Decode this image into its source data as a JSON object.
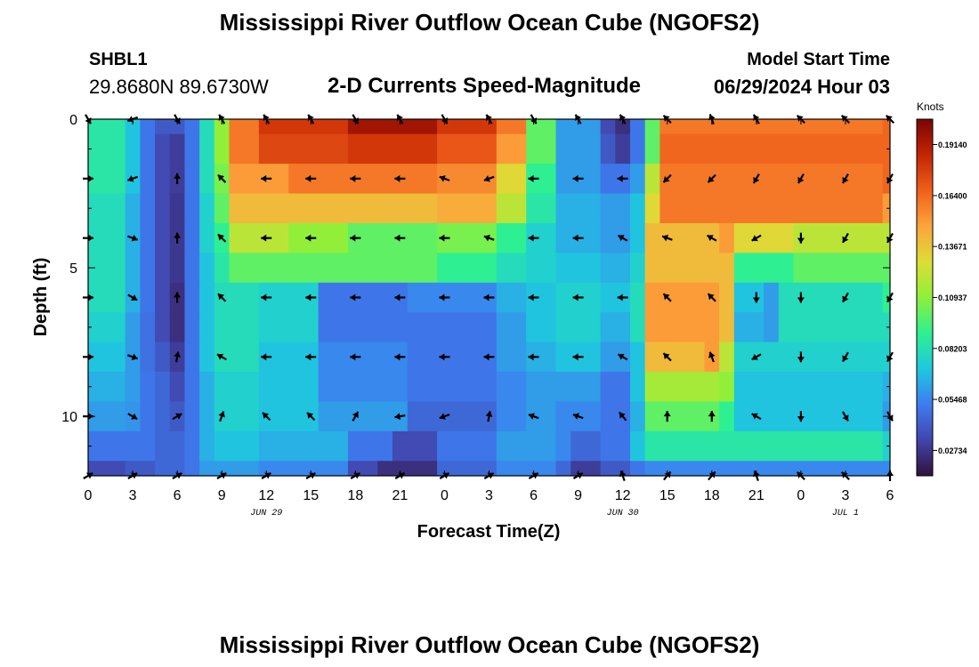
{
  "page": {
    "title": "Mississippi River Outflow Ocean Cube (NGOFS2)",
    "station_id": "SHBL1",
    "station_coords": "29.8680N  89.6730W",
    "plot_title": "2-D Currents Speed-Magnitude",
    "model_start_label": "Model Start Time",
    "model_start_value": "06/29/2024 Hour 03",
    "bottom_title": "Mississippi River Outflow Ocean Cube (NGOFS2)"
  },
  "chart_data": {
    "type": "heatmap",
    "title": "2-D Currents Speed-Magnitude",
    "xlabel": "Forecast Time(Z)",
    "ylabel": "Depth (ft)",
    "x_ticks": [
      "0",
      "3",
      "6",
      "9",
      "12",
      "15",
      "18",
      "21",
      "0",
      "3",
      "6",
      "9",
      "12",
      "15",
      "18",
      "21",
      "0",
      "3",
      "6"
    ],
    "date_labels": [
      {
        "label": "JUN 29",
        "at_tick": 4
      },
      {
        "label": "JUN 30",
        "at_tick": 12
      },
      {
        "label": "JUL 1",
        "at_tick": 17
      }
    ],
    "y_ticks": [
      0,
      5,
      10
    ],
    "ylim": [
      0,
      12
    ],
    "x_range_hours": [
      0,
      54
    ],
    "colorbar": {
      "unit": "Knots",
      "ticks": [
        "0.19140",
        "0.16400",
        "0.13671",
        "0.10937",
        "0.08203",
        "0.05468",
        "0.02734"
      ],
      "range": [
        0.0137,
        0.205
      ]
    },
    "speed_segments_by_depth": [
      {
        "depth_ft": 0,
        "segments": [
          [
            0,
            0.085
          ],
          [
            3,
            0.07
          ],
          [
            4,
            0.05
          ],
          [
            5,
            0.04
          ],
          [
            6,
            0.04
          ],
          [
            7,
            0.05
          ],
          [
            8,
            0.08
          ],
          [
            9,
            0.11
          ],
          [
            10,
            0.16
          ],
          [
            12,
            0.18
          ],
          [
            18,
            0.195
          ],
          [
            24,
            0.18
          ],
          [
            28,
            0.16
          ],
          [
            30,
            0.1
          ],
          [
            32,
            0.06
          ],
          [
            35,
            0.035
          ],
          [
            36,
            0.025
          ],
          [
            37,
            0.05
          ],
          [
            38,
            0.1
          ],
          [
            39,
            0.16
          ],
          [
            54,
            0.165
          ]
        ]
      },
      {
        "depth_ft": 1,
        "segments": [
          [
            0,
            0.085
          ],
          [
            3,
            0.07
          ],
          [
            4,
            0.05
          ],
          [
            5,
            0.035
          ],
          [
            6,
            0.03
          ],
          [
            7,
            0.05
          ],
          [
            8,
            0.08
          ],
          [
            9,
            0.11
          ],
          [
            10,
            0.16
          ],
          [
            12,
            0.175
          ],
          [
            18,
            0.18
          ],
          [
            24,
            0.17
          ],
          [
            28,
            0.15
          ],
          [
            30,
            0.1
          ],
          [
            32,
            0.06
          ],
          [
            35,
            0.04
          ],
          [
            36,
            0.03
          ],
          [
            37,
            0.05
          ],
          [
            38,
            0.1
          ],
          [
            39,
            0.165
          ],
          [
            54,
            0.165
          ]
        ]
      },
      {
        "depth_ft": 2,
        "segments": [
          [
            0,
            0.085
          ],
          [
            3,
            0.07
          ],
          [
            4,
            0.05
          ],
          [
            5,
            0.035
          ],
          [
            6,
            0.03
          ],
          [
            7,
            0.05
          ],
          [
            8,
            0.08
          ],
          [
            9,
            0.105
          ],
          [
            10,
            0.15
          ],
          [
            14,
            0.16
          ],
          [
            24,
            0.155
          ],
          [
            28,
            0.13
          ],
          [
            30,
            0.09
          ],
          [
            32,
            0.06
          ],
          [
            35,
            0.05
          ],
          [
            37,
            0.06
          ],
          [
            38,
            0.12
          ],
          [
            39,
            0.16
          ],
          [
            54,
            0.165
          ]
        ]
      },
      {
        "depth_ft": 3,
        "segments": [
          [
            0,
            0.08
          ],
          [
            3,
            0.065
          ],
          [
            4,
            0.05
          ],
          [
            5,
            0.035
          ],
          [
            6,
            0.028
          ],
          [
            7,
            0.05
          ],
          [
            8,
            0.075
          ],
          [
            9,
            0.1
          ],
          [
            10,
            0.14
          ],
          [
            24,
            0.145
          ],
          [
            28,
            0.12
          ],
          [
            30,
            0.085
          ],
          [
            32,
            0.065
          ],
          [
            35,
            0.06
          ],
          [
            37,
            0.07
          ],
          [
            38,
            0.13
          ],
          [
            39,
            0.16
          ],
          [
            54,
            0.15
          ]
        ]
      },
      {
        "depth_ft": 4,
        "segments": [
          [
            0,
            0.08
          ],
          [
            3,
            0.065
          ],
          [
            4,
            0.05
          ],
          [
            5,
            0.035
          ],
          [
            6,
            0.028
          ],
          [
            7,
            0.05
          ],
          [
            8,
            0.075
          ],
          [
            9,
            0.09
          ],
          [
            10,
            0.12
          ],
          [
            14,
            0.11
          ],
          [
            18,
            0.1
          ],
          [
            24,
            0.105
          ],
          [
            28,
            0.09
          ],
          [
            30,
            0.075
          ],
          [
            32,
            0.065
          ],
          [
            35,
            0.06
          ],
          [
            37,
            0.07
          ],
          [
            38,
            0.14
          ],
          [
            43,
            0.15
          ],
          [
            44,
            0.13
          ],
          [
            48,
            0.12
          ],
          [
            54,
            0.12
          ]
        ]
      },
      {
        "depth_ft": 5,
        "segments": [
          [
            0,
            0.08
          ],
          [
            3,
            0.065
          ],
          [
            4,
            0.05
          ],
          [
            5,
            0.035
          ],
          [
            6,
            0.028
          ],
          [
            7,
            0.05
          ],
          [
            8,
            0.07
          ],
          [
            9,
            0.085
          ],
          [
            10,
            0.1
          ],
          [
            24,
            0.09
          ],
          [
            28,
            0.08
          ],
          [
            30,
            0.075
          ],
          [
            32,
            0.07
          ],
          [
            35,
            0.065
          ],
          [
            37,
            0.075
          ],
          [
            38,
            0.14
          ],
          [
            43,
            0.14
          ],
          [
            44,
            0.09
          ],
          [
            48,
            0.1
          ],
          [
            54,
            0.1
          ]
        ]
      },
      {
        "depth_ft": 6,
        "segments": [
          [
            0,
            0.08
          ],
          [
            3,
            0.065
          ],
          [
            4,
            0.05
          ],
          [
            5,
            0.035
          ],
          [
            6,
            0.025
          ],
          [
            7,
            0.05
          ],
          [
            8,
            0.07
          ],
          [
            9,
            0.08
          ],
          [
            12,
            0.075
          ],
          [
            16,
            0.05
          ],
          [
            22,
            0.055
          ],
          [
            28,
            0.065
          ],
          [
            30,
            0.07
          ],
          [
            32,
            0.075
          ],
          [
            35,
            0.07
          ],
          [
            37,
            0.08
          ],
          [
            38,
            0.15
          ],
          [
            43,
            0.14
          ],
          [
            44,
            0.07
          ],
          [
            46,
            0.06
          ],
          [
            47,
            0.08
          ],
          [
            54,
            0.09
          ]
        ]
      },
      {
        "depth_ft": 7,
        "segments": [
          [
            0,
            0.075
          ],
          [
            3,
            0.06
          ],
          [
            4,
            0.048
          ],
          [
            5,
            0.035
          ],
          [
            6,
            0.025
          ],
          [
            7,
            0.05
          ],
          [
            8,
            0.07
          ],
          [
            9,
            0.08
          ],
          [
            12,
            0.075
          ],
          [
            16,
            0.05
          ],
          [
            22,
            0.05
          ],
          [
            28,
            0.06
          ],
          [
            30,
            0.07
          ],
          [
            32,
            0.075
          ],
          [
            35,
            0.065
          ],
          [
            37,
            0.08
          ],
          [
            38,
            0.15
          ],
          [
            43,
            0.14
          ],
          [
            44,
            0.065
          ],
          [
            46,
            0.06
          ],
          [
            47,
            0.08
          ],
          [
            54,
            0.08
          ]
        ]
      },
      {
        "depth_ft": 8,
        "segments": [
          [
            0,
            0.07
          ],
          [
            3,
            0.06
          ],
          [
            4,
            0.048
          ],
          [
            5,
            0.04
          ],
          [
            6,
            0.03
          ],
          [
            7,
            0.05
          ],
          [
            8,
            0.07
          ],
          [
            9,
            0.08
          ],
          [
            12,
            0.07
          ],
          [
            16,
            0.055
          ],
          [
            22,
            0.05
          ],
          [
            28,
            0.06
          ],
          [
            30,
            0.065
          ],
          [
            32,
            0.07
          ],
          [
            35,
            0.06
          ],
          [
            37,
            0.07
          ],
          [
            38,
            0.14
          ],
          [
            42,
            0.15
          ],
          [
            43,
            0.12
          ],
          [
            44,
            0.075
          ],
          [
            54,
            0.075
          ]
        ]
      },
      {
        "depth_ft": 9,
        "segments": [
          [
            0,
            0.065
          ],
          [
            3,
            0.06
          ],
          [
            4,
            0.05
          ],
          [
            5,
            0.045
          ],
          [
            6,
            0.035
          ],
          [
            7,
            0.05
          ],
          [
            8,
            0.065
          ],
          [
            9,
            0.075
          ],
          [
            12,
            0.07
          ],
          [
            16,
            0.055
          ],
          [
            22,
            0.05
          ],
          [
            28,
            0.055
          ],
          [
            30,
            0.06
          ],
          [
            32,
            0.06
          ],
          [
            35,
            0.05
          ],
          [
            37,
            0.07
          ],
          [
            38,
            0.115
          ],
          [
            43,
            0.11
          ],
          [
            44,
            0.07
          ],
          [
            54,
            0.065
          ]
        ]
      },
      {
        "depth_ft": 10,
        "segments": [
          [
            0,
            0.06
          ],
          [
            3,
            0.058
          ],
          [
            4,
            0.05
          ],
          [
            5,
            0.045
          ],
          [
            6,
            0.04
          ],
          [
            7,
            0.05
          ],
          [
            8,
            0.065
          ],
          [
            9,
            0.075
          ],
          [
            12,
            0.07
          ],
          [
            16,
            0.06
          ],
          [
            22,
            0.045
          ],
          [
            28,
            0.055
          ],
          [
            30,
            0.06
          ],
          [
            32,
            0.055
          ],
          [
            35,
            0.05
          ],
          [
            37,
            0.065
          ],
          [
            38,
            0.1
          ],
          [
            43,
            0.09
          ],
          [
            44,
            0.07
          ],
          [
            54,
            0.06
          ]
        ]
      },
      {
        "depth_ft": 11,
        "segments": [
          [
            0,
            0.05
          ],
          [
            3,
            0.05
          ],
          [
            5,
            0.045
          ],
          [
            7,
            0.05
          ],
          [
            8,
            0.065
          ],
          [
            9,
            0.07
          ],
          [
            12,
            0.065
          ],
          [
            18,
            0.05
          ],
          [
            21,
            0.035
          ],
          [
            24,
            0.05
          ],
          [
            28,
            0.06
          ],
          [
            32,
            0.055
          ],
          [
            33,
            0.045
          ],
          [
            35,
            0.05
          ],
          [
            37,
            0.07
          ],
          [
            38,
            0.085
          ],
          [
            54,
            0.075
          ]
        ]
      },
      {
        "depth_ft": 12,
        "segments": [
          [
            0,
            0.035
          ],
          [
            3,
            0.04
          ],
          [
            5,
            0.045
          ],
          [
            7,
            0.05
          ],
          [
            8,
            0.06
          ],
          [
            9,
            0.06
          ],
          [
            12,
            0.055
          ],
          [
            18,
            0.035
          ],
          [
            20,
            0.025
          ],
          [
            24,
            0.045
          ],
          [
            28,
            0.055
          ],
          [
            32,
            0.045
          ],
          [
            33,
            0.03
          ],
          [
            35,
            0.04
          ],
          [
            37,
            0.05
          ],
          [
            38,
            0.055
          ],
          [
            54,
            0.055
          ]
        ]
      }
    ],
    "vectors_by_depth": [
      {
        "depth_ft": 0,
        "angles_deg": [
          300,
          200,
          300,
          120,
          120,
          120,
          300,
          120,
          300,
          120,
          300,
          120,
          120,
          135,
          110,
          120,
          135,
          135,
          135
        ]
      },
      {
        "depth_ft": 2,
        "angles_deg": [
          0,
          200,
          90,
          135,
          180,
          180,
          180,
          180,
          160,
          200,
          180,
          180,
          180,
          225,
          225,
          240,
          240,
          240,
          240
        ]
      },
      {
        "depth_ft": 4,
        "angles_deg": [
          0,
          340,
          90,
          135,
          180,
          180,
          180,
          180,
          180,
          160,
          180,
          180,
          150,
          160,
          150,
          210,
          270,
          240,
          240
        ]
      },
      {
        "depth_ft": 6,
        "angles_deg": [
          0,
          330,
          90,
          135,
          180,
          180,
          180,
          180,
          180,
          180,
          180,
          180,
          180,
          135,
          135,
          270,
          270,
          240,
          240
        ]
      },
      {
        "depth_ft": 8,
        "angles_deg": [
          0,
          340,
          80,
          150,
          180,
          180,
          180,
          180,
          180,
          180,
          180,
          180,
          150,
          135,
          110,
          210,
          270,
          240,
          240
        ]
      },
      {
        "depth_ft": 10,
        "angles_deg": [
          0,
          330,
          30,
          70,
          135,
          135,
          60,
          190,
          200,
          80,
          160,
          160,
          130,
          90,
          90,
          150,
          270,
          300,
          300
        ]
      },
      {
        "depth_ft": 12,
        "angles_deg": [
          30,
          30,
          30,
          30,
          30,
          30,
          30,
          30,
          30,
          30,
          30,
          30,
          110,
          50,
          50,
          110,
          135,
          135,
          90
        ]
      }
    ]
  }
}
